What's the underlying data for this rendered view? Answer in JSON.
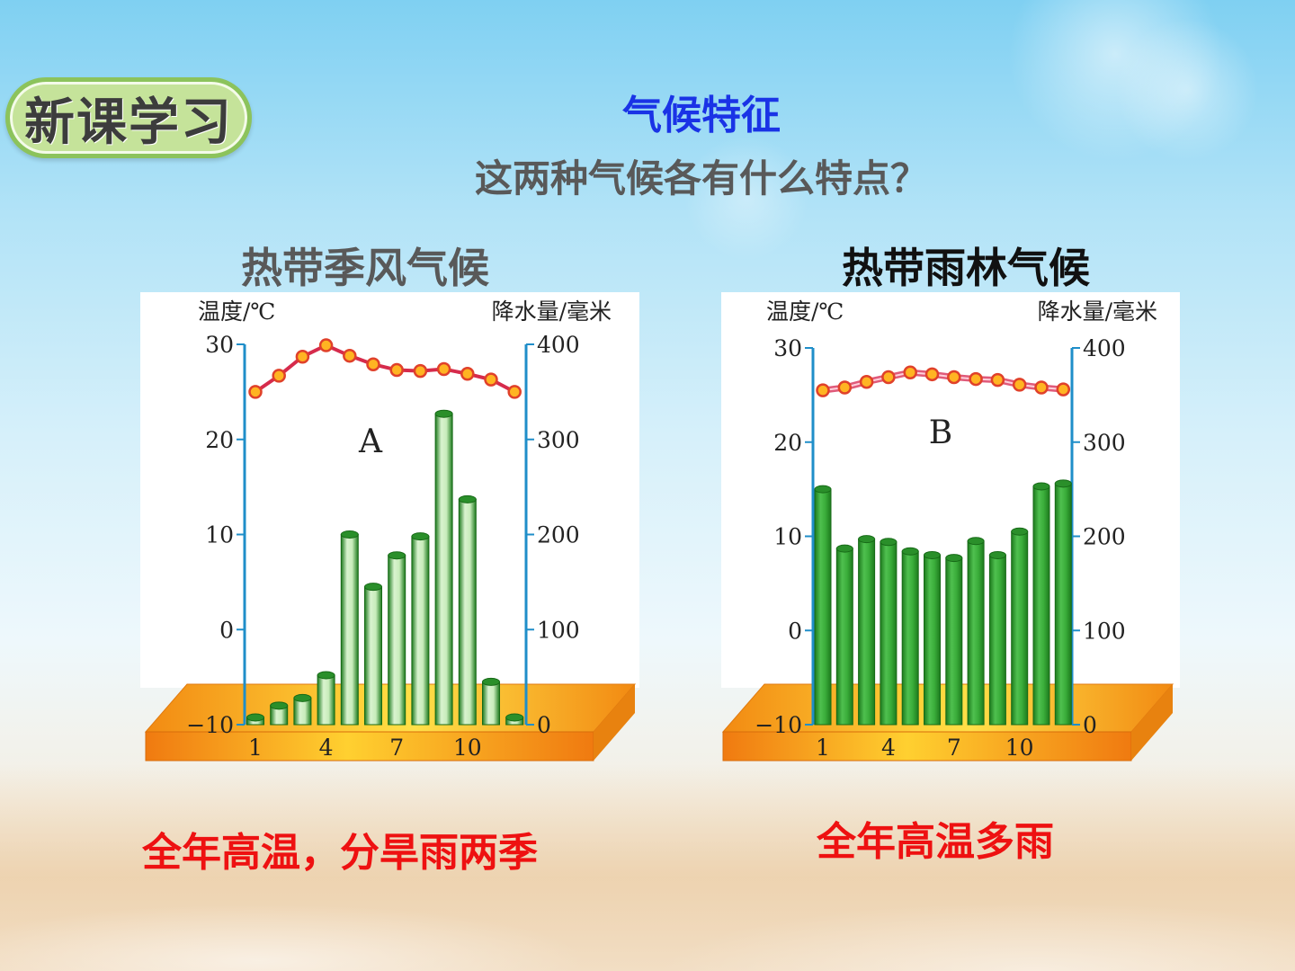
{
  "badge": {
    "label": "新课学习"
  },
  "header": {
    "title": "气候特征",
    "question": "这两种气候各有什么特点？"
  },
  "colors": {
    "title": "#1a33e6",
    "summary": "#ee1111",
    "bar": "#2e9b2e",
    "temperature_line": "#d62b4c",
    "axis": "#1f8ec9",
    "base": "#f59a1e"
  },
  "icons": {
    "badge": "rounded-pill-badge"
  },
  "charts": [
    {
      "heading": "热带季风气候",
      "summary": "全年高温，分旱雨两季"
    },
    {
      "heading": "热带雨林气候",
      "summary": "全年高温多雨"
    }
  ],
  "chart_data": [
    {
      "type": "bar",
      "chart_label": "A",
      "ylabel_left": "温度/℃",
      "ylabel_right": "降水量/毫米",
      "x": [
        1,
        2,
        3,
        4,
        5,
        6,
        7,
        8,
        9,
        10,
        11,
        12
      ],
      "x_tick_labels": [
        "1",
        "4",
        "7",
        "10"
      ],
      "x_tick_positions": [
        1,
        4,
        7,
        10
      ],
      "ylim_left": [
        -10,
        30
      ],
      "yticks_left": [
        "30",
        "20",
        "10",
        "0",
        "−10"
      ],
      "yticks_left_values": [
        30,
        20,
        10,
        0,
        -10
      ],
      "ylim_right": [
        0,
        400
      ],
      "yticks_right": [
        "400",
        "300",
        "200",
        "100",
        "0"
      ],
      "yticks_right_values": [
        400,
        300,
        200,
        100,
        0
      ],
      "series": [
        {
          "kind": "line",
          "axis": "left",
          "values": [
            25,
            26.7,
            28.7,
            29.9,
            28.8,
            27.9,
            27.3,
            27.2,
            27.4,
            26.9,
            26.3,
            25.0
          ]
        },
        {
          "kind": "bar",
          "axis": "right",
          "values": [
            0,
            20,
            28,
            52,
            200,
            145,
            178,
            198,
            327,
            237,
            45,
            0
          ]
        }
      ]
    },
    {
      "type": "bar",
      "chart_label": "B",
      "ylabel_left": "温度/℃",
      "ylabel_right": "降水量/毫米",
      "x": [
        1,
        2,
        3,
        4,
        5,
        6,
        7,
        8,
        9,
        10,
        11,
        12
      ],
      "x_tick_labels": [
        "1",
        "4",
        "7",
        "10"
      ],
      "x_tick_positions": [
        1,
        4,
        7,
        10
      ],
      "ylim_left": [
        -10,
        30
      ],
      "yticks_left": [
        "30",
        "20",
        "10",
        "0",
        "−10"
      ],
      "yticks_left_values": [
        30,
        20,
        10,
        0,
        -10
      ],
      "ylim_right": [
        0,
        400
      ],
      "yticks_right": [
        "400",
        "300",
        "200",
        "100",
        "0"
      ],
      "yticks_right_values": [
        400,
        300,
        200,
        100,
        0
      ],
      "series": [
        {
          "kind": "line",
          "axis": "left",
          "values": [
            25.5,
            25.8,
            26.4,
            26.9,
            27.4,
            27.2,
            26.9,
            26.7,
            26.6,
            26.1,
            25.8,
            25.6
          ]
        },
        {
          "kind": "bar",
          "axis": "right",
          "values": [
            250,
            187,
            197,
            194,
            184,
            180,
            177,
            195,
            180,
            205,
            253,
            256
          ]
        }
      ]
    }
  ]
}
